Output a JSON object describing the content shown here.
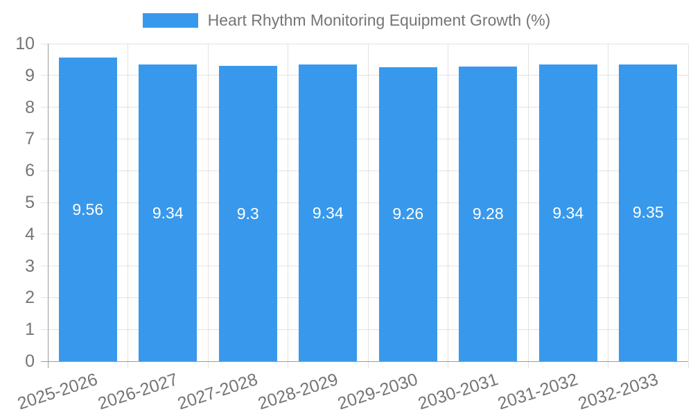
{
  "colors": {
    "bar": "#3899ec",
    "grid": "#e2e2e2",
    "axis": "#9b9b9b",
    "text": "#757575",
    "value_label": "#ffffff",
    "background": "#ffffff"
  },
  "legend": {
    "label": "Heart Rhythm Monitoring Equipment Growth (%)"
  },
  "chart_data": {
    "type": "bar",
    "title": "Heart Rhythm Monitoring Equipment Growth (%)",
    "categories": [
      "2025-2026",
      "2026-2027",
      "2027-2028",
      "2028-2029",
      "2029-2030",
      "2030-2031",
      "2031-2032",
      "2032-2033"
    ],
    "values": [
      9.56,
      9.34,
      9.3,
      9.34,
      9.26,
      9.28,
      9.34,
      9.35
    ],
    "value_labels": [
      "9.56",
      "9.34",
      "9.3",
      "9.34",
      "9.26",
      "9.28",
      "9.34",
      "9.35"
    ],
    "xlabel": "",
    "ylabel": "",
    "ylim": [
      0,
      10
    ],
    "yticks": [
      0,
      1,
      2,
      3,
      4,
      5,
      6,
      7,
      8,
      9,
      10
    ],
    "grid": true,
    "legend_position": "top",
    "x_tick_rotation": -18
  }
}
